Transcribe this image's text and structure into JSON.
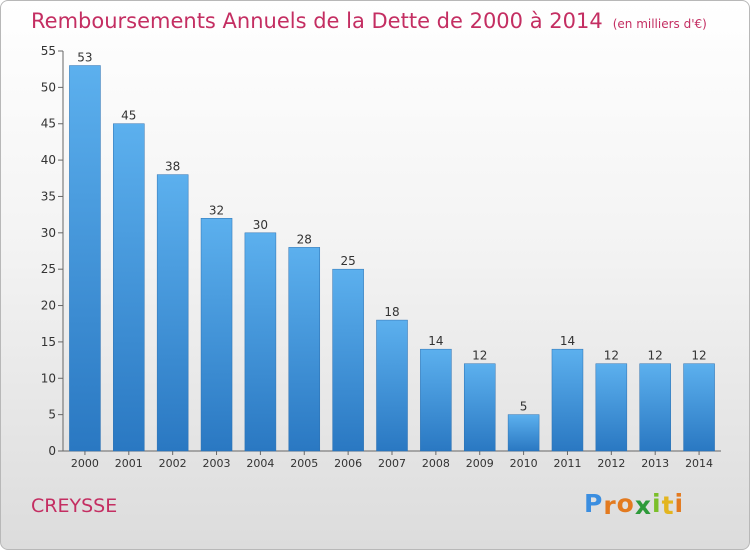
{
  "chart_data": {
    "type": "bar",
    "title": "Remboursements Annuels de la Dette de 2000 à 2014",
    "subtitle": "(en milliers d'€)",
    "categories": [
      "2000",
      "2001",
      "2002",
      "2003",
      "2004",
      "2005",
      "2006",
      "2007",
      "2008",
      "2009",
      "2010",
      "2011",
      "2012",
      "2013",
      "2014"
    ],
    "values": [
      53,
      45,
      38,
      32,
      30,
      28,
      25,
      18,
      14,
      12,
      5,
      14,
      12,
      12,
      12
    ],
    "yticks": [
      0,
      5,
      10,
      15,
      20,
      25,
      30,
      35,
      40,
      45,
      50,
      55
    ],
    "ylim": [
      0,
      55
    ],
    "grid": false,
    "bar_color": "#4a9ce0"
  },
  "footer": {
    "city": "CREYSSE",
    "logo_letters": [
      "P",
      "r",
      "o",
      "x",
      "i",
      "t",
      "i"
    ],
    "logo_colors": [
      "#3b8ee0",
      "#e37a1f",
      "#e37a1f",
      "#2e9a3a",
      "#7bbf2a",
      "#e3b51f",
      "#e37a1f"
    ]
  }
}
